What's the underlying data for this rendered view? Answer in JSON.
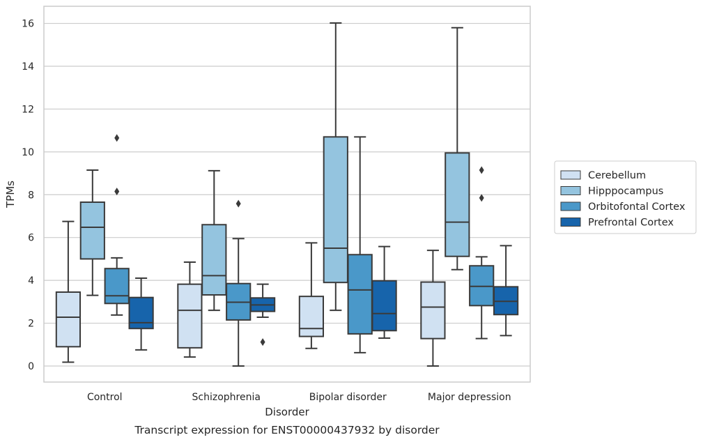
{
  "chart_data": {
    "type": "boxplot",
    "caption": "Transcript expression for ENST00000437932 by disorder",
    "xlabel": "Disorder",
    "ylabel": "TPMs",
    "ylim": [
      -0.75,
      16.8
    ],
    "yticks": [
      0,
      2,
      4,
      6,
      8,
      10,
      12,
      14,
      16
    ],
    "grid": true,
    "legend_position": "right",
    "categories": [
      "Control",
      "Schizophrenia",
      "Bipolar disorder",
      "Major depression"
    ],
    "series": [
      {
        "name": "Cerebellum",
        "color": "#d0e1f2",
        "boxes": [
          {
            "whisker_low": 0.18,
            "q1": 0.9,
            "median": 2.28,
            "q3": 3.45,
            "whisker_high": 6.75,
            "outliers": []
          },
          {
            "whisker_low": 0.42,
            "q1": 0.85,
            "median": 2.6,
            "q3": 3.82,
            "whisker_high": 4.85,
            "outliers": []
          },
          {
            "whisker_low": 0.82,
            "q1": 1.38,
            "median": 1.75,
            "q3": 3.25,
            "whisker_high": 5.75,
            "outliers": []
          },
          {
            "whisker_low": 0.0,
            "q1": 1.28,
            "median": 2.75,
            "q3": 3.92,
            "whisker_high": 5.4,
            "outliers": []
          }
        ]
      },
      {
        "name": "Hipppocampus",
        "color": "#94c4df",
        "boxes": [
          {
            "whisker_low": 3.3,
            "q1": 5.0,
            "median": 6.48,
            "q3": 7.65,
            "whisker_high": 9.15,
            "outliers": []
          },
          {
            "whisker_low": 2.6,
            "q1": 3.32,
            "median": 4.22,
            "q3": 6.6,
            "whisker_high": 9.12,
            "outliers": []
          },
          {
            "whisker_low": 2.6,
            "q1": 3.9,
            "median": 5.5,
            "q3": 10.7,
            "whisker_high": 16.02,
            "outliers": []
          },
          {
            "whisker_low": 4.5,
            "q1": 5.12,
            "median": 6.72,
            "q3": 9.95,
            "whisker_high": 15.8,
            "outliers": []
          }
        ]
      },
      {
        "name": "Orbitofontal Cortex",
        "color": "#4a98c9",
        "boxes": [
          {
            "whisker_low": 2.38,
            "q1": 2.92,
            "median": 3.28,
            "q3": 4.55,
            "whisker_high": 5.05,
            "outliers": [
              8.15,
              10.65
            ]
          },
          {
            "whisker_low": 0.0,
            "q1": 2.15,
            "median": 2.98,
            "q3": 3.85,
            "whisker_high": 5.95,
            "outliers": [
              7.58
            ]
          },
          {
            "whisker_low": 0.62,
            "q1": 1.5,
            "median": 3.55,
            "q3": 5.2,
            "whisker_high": 10.7,
            "outliers": []
          },
          {
            "whisker_low": 1.28,
            "q1": 2.82,
            "median": 3.72,
            "q3": 4.68,
            "whisker_high": 5.1,
            "outliers": [
              7.85,
              9.15
            ]
          }
        ]
      },
      {
        "name": "Prefrontal Cortex",
        "color": "#1764ab",
        "boxes": [
          {
            "whisker_low": 0.75,
            "q1": 1.75,
            "median": 2.02,
            "q3": 3.2,
            "whisker_high": 4.1,
            "outliers": []
          },
          {
            "whisker_low": 2.28,
            "q1": 2.55,
            "median": 2.85,
            "q3": 3.18,
            "whisker_high": 3.82,
            "outliers": [
              1.12
            ]
          },
          {
            "whisker_low": 1.3,
            "q1": 1.65,
            "median": 2.45,
            "q3": 3.98,
            "whisker_high": 5.58,
            "outliers": []
          },
          {
            "whisker_low": 1.42,
            "q1": 2.4,
            "median": 3.02,
            "q3": 3.7,
            "whisker_high": 5.62,
            "outliers": []
          }
        ]
      }
    ]
  }
}
